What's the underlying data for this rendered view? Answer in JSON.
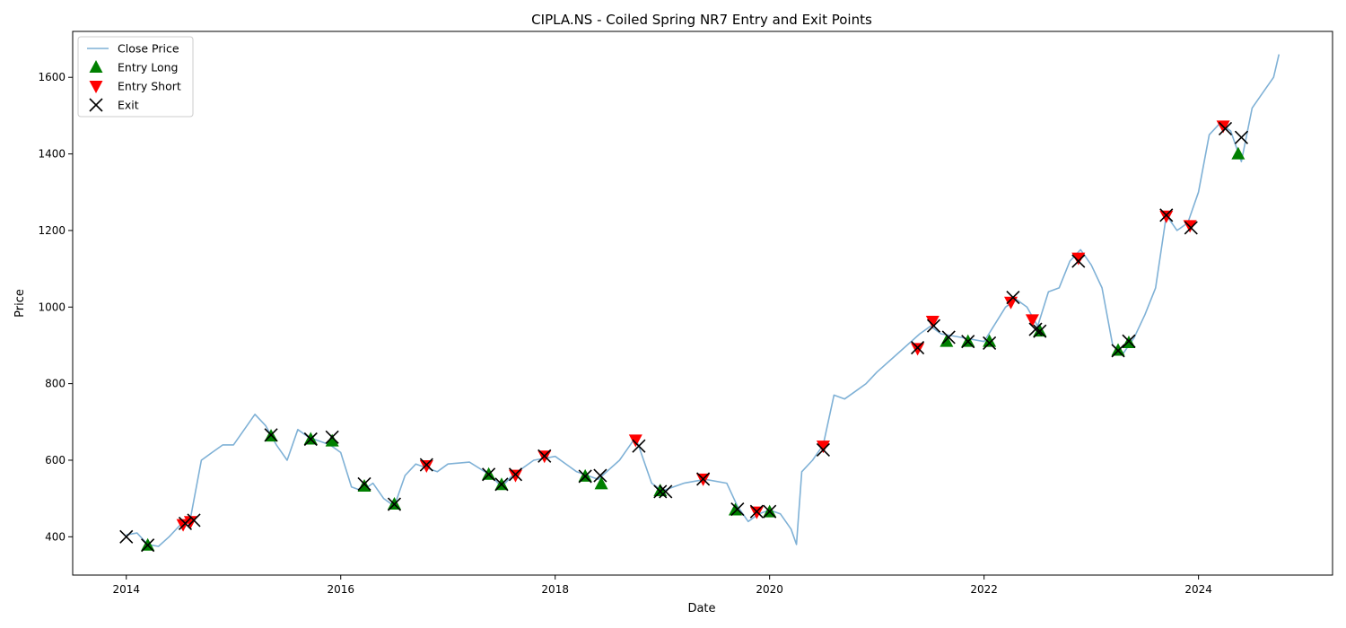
{
  "chart_data": {
    "type": "line",
    "title": "CIPLA.NS - Coiled Spring NR7 Entry and Exit Points",
    "xlabel": "Date",
    "ylabel": "Price",
    "xlim": [
      2013.5,
      2025.25
    ],
    "ylim": [
      300,
      1720
    ],
    "x_ticks": [
      2014,
      2016,
      2018,
      2020,
      2022,
      2024
    ],
    "y_ticks": [
      400,
      600,
      800,
      1000,
      1200,
      1400,
      1600
    ],
    "grid": false,
    "legend_position": "top-left",
    "legend": [
      "Close Price",
      "Entry Long",
      "Entry Short",
      "Exit"
    ],
    "colors": {
      "close": "#7fb1d6",
      "long": "#008000",
      "short": "#ff0000",
      "exit": "#000000"
    },
    "series": [
      {
        "name": "Close Price",
        "x": [
          2014.0,
          2014.1,
          2014.2,
          2014.3,
          2014.4,
          2014.5,
          2014.55,
          2014.6,
          2014.7,
          2014.8,
          2014.9,
          2015.0,
          2015.1,
          2015.2,
          2015.3,
          2015.4,
          2015.5,
          2015.6,
          2015.7,
          2015.8,
          2015.9,
          2016.0,
          2016.1,
          2016.2,
          2016.3,
          2016.4,
          2016.5,
          2016.6,
          2016.7,
          2016.8,
          2016.9,
          2017.0,
          2017.2,
          2017.4,
          2017.5,
          2017.6,
          2017.8,
          2018.0,
          2018.2,
          2018.4,
          2018.6,
          2018.75,
          2018.8,
          2018.9,
          2019.0,
          2019.2,
          2019.4,
          2019.6,
          2019.7,
          2019.8,
          2019.9,
          2020.0,
          2020.1,
          2020.2,
          2020.25,
          2020.3,
          2020.4,
          2020.5,
          2020.6,
          2020.7,
          2020.8,
          2020.9,
          2021.0,
          2021.2,
          2021.4,
          2021.5,
          2021.6,
          2021.8,
          2022.0,
          2022.2,
          2022.3,
          2022.4,
          2022.5,
          2022.6,
          2022.7,
          2022.8,
          2022.9,
          2023.0,
          2023.1,
          2023.2,
          2023.3,
          2023.4,
          2023.5,
          2023.6,
          2023.7,
          2023.8,
          2023.9,
          2024.0,
          2024.1,
          2024.2,
          2024.3,
          2024.4,
          2024.5,
          2024.6,
          2024.7,
          2024.75
        ],
        "values": [
          405,
          410,
          380,
          375,
          400,
          430,
          440,
          450,
          600,
          620,
          640,
          640,
          680,
          720,
          690,
          640,
          600,
          680,
          660,
          650,
          640,
          620,
          530,
          520,
          540,
          500,
          480,
          560,
          590,
          580,
          570,
          590,
          595,
          560,
          530,
          560,
          600,
          610,
          570,
          550,
          600,
          660,
          620,
          540,
          520,
          540,
          550,
          540,
          480,
          440,
          460,
          470,
          460,
          420,
          380,
          570,
          600,
          640,
          770,
          760,
          780,
          800,
          830,
          880,
          930,
          950,
          930,
          920,
          910,
          1000,
          1020,
          1000,
          950,
          1040,
          1050,
          1120,
          1150,
          1110,
          1050,
          900,
          880,
          920,
          980,
          1050,
          1240,
          1200,
          1220,
          1300,
          1450,
          1480,
          1460,
          1380,
          1520,
          1560,
          1600,
          1660
        ]
      },
      {
        "name": "Entry Long",
        "x": [
          2014.2,
          2015.35,
          2015.72,
          2015.92,
          2016.22,
          2016.5,
          2017.38,
          2017.5,
          2018.28,
          2018.43,
          2018.98,
          2019.68,
          2020.0,
          2021.65,
          2021.85,
          2022.05,
          2022.52,
          2023.25,
          2023.35,
          2024.37
        ],
        "values": [
          378,
          663,
          655,
          650,
          532,
          485,
          563,
          536,
          558,
          538,
          520,
          470,
          465,
          910,
          910,
          910,
          937,
          887,
          907,
          1400
        ]
      },
      {
        "name": "Entry Short",
        "x": [
          2014.53,
          2014.6,
          2016.8,
          2017.63,
          2017.9,
          2018.75,
          2019.38,
          2019.88,
          2020.5,
          2021.38,
          2021.52,
          2022.25,
          2022.45,
          2022.88,
          2023.7,
          2023.92,
          2024.23
        ],
        "values": [
          432,
          440,
          586,
          561,
          611,
          653,
          551,
          465,
          637,
          892,
          963,
          1013,
          967,
          1128,
          1238,
          1213,
          1473
        ]
      },
      {
        "name": "Exit",
        "x": [
          2014.0,
          2014.2,
          2014.55,
          2014.63,
          2015.35,
          2015.72,
          2015.92,
          2016.22,
          2016.5,
          2016.8,
          2017.38,
          2017.5,
          2017.63,
          2017.9,
          2018.28,
          2018.42,
          2018.78,
          2018.98,
          2019.03,
          2019.38,
          2019.7,
          2019.88,
          2020.0,
          2020.5,
          2021.38,
          2021.53,
          2021.67,
          2021.85,
          2022.05,
          2022.27,
          2022.48,
          2022.52,
          2022.88,
          2023.25,
          2023.35,
          2023.7,
          2023.93,
          2024.25,
          2024.4
        ],
        "values": [
          400,
          378,
          435,
          443,
          666,
          655,
          660,
          538,
          485,
          588,
          563,
          537,
          563,
          611,
          558,
          560,
          637,
          518,
          518,
          551,
          472,
          466,
          466,
          627,
          894,
          951,
          921,
          910,
          906,
          1025,
          942,
          937,
          1120,
          886,
          911,
          1240,
          1207,
          1466,
          1443
        ]
      }
    ]
  }
}
